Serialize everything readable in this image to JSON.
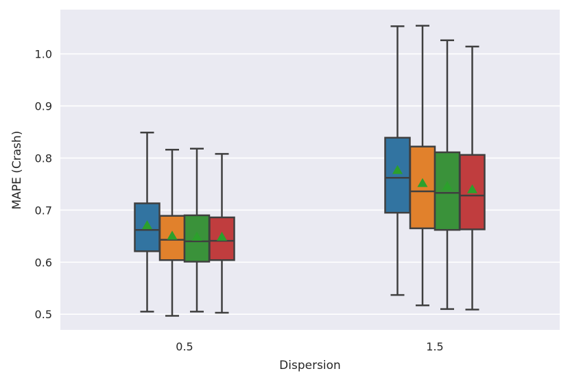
{
  "chart_data": {
    "type": "box",
    "title": "",
    "xlabel": "Dispersion",
    "ylabel": "MAPE (Crash)",
    "ylim": [
      0.47,
      1.085
    ],
    "yticks": [
      0.5,
      0.6,
      0.7,
      0.8,
      0.9,
      1.0
    ],
    "ytick_labels": [
      "0.5",
      "0.6",
      "0.7",
      "0.8",
      "0.9",
      "1.0"
    ],
    "categories": [
      "0.5",
      "1.5"
    ],
    "grid": true,
    "legend": false,
    "colors": {
      "background": "#eaeaf2",
      "grid": "#ffffff",
      "line": "#3f3f3f",
      "mean_marker": "#2ca02c"
    },
    "series": [
      {
        "color": "#3274a1",
        "boxes": [
          {
            "category": "0.5",
            "whisker_low": 0.505,
            "q1": 0.621,
            "median": 0.662,
            "q3": 0.713,
            "whisker_high": 0.849,
            "mean": 0.67
          },
          {
            "category": "1.5",
            "whisker_low": 0.537,
            "q1": 0.695,
            "median": 0.762,
            "q3": 0.839,
            "whisker_high": 1.053,
            "mean": 0.776
          }
        ]
      },
      {
        "color": "#e1812c",
        "boxes": [
          {
            "category": "0.5",
            "whisker_low": 0.497,
            "q1": 0.604,
            "median": 0.643,
            "q3": 0.689,
            "whisker_high": 0.816,
            "mean": 0.65
          },
          {
            "category": "1.5",
            "whisker_low": 0.517,
            "q1": 0.665,
            "median": 0.736,
            "q3": 0.822,
            "whisker_high": 1.054,
            "mean": 0.751
          }
        ]
      },
      {
        "color": "#3a923a",
        "boxes": [
          {
            "category": "0.5",
            "whisker_low": 0.505,
            "q1": 0.601,
            "median": 0.64,
            "q3": 0.69,
            "whisker_high": 0.818,
            "mean": 0.648
          },
          {
            "category": "1.5",
            "whisker_low": 0.51,
            "q1": 0.662,
            "median": 0.733,
            "q3": 0.811,
            "whisker_high": 1.026,
            "mean": 0.745
          }
        ]
      },
      {
        "color": "#c03d3e",
        "boxes": [
          {
            "category": "0.5",
            "whisker_low": 0.503,
            "q1": 0.604,
            "median": 0.641,
            "q3": 0.686,
            "whisker_high": 0.808,
            "mean": 0.648
          },
          {
            "category": "1.5",
            "whisker_low": 0.509,
            "q1": 0.663,
            "median": 0.728,
            "q3": 0.806,
            "whisker_high": 1.014,
            "mean": 0.739
          }
        ]
      }
    ]
  }
}
